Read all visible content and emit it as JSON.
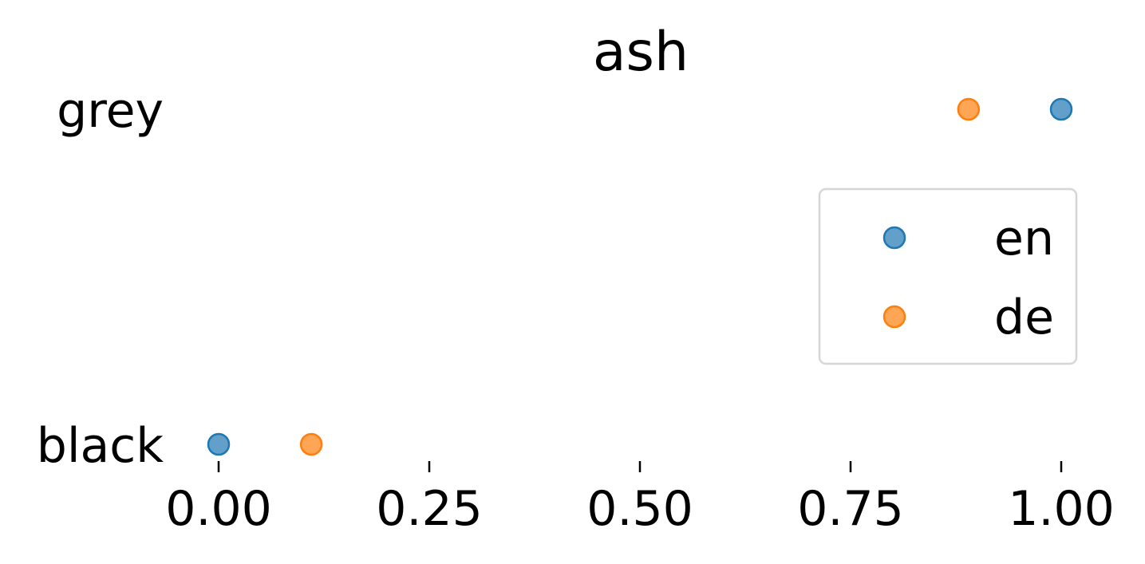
{
  "chart_data": {
    "type": "scatter",
    "title": "ash",
    "xlabel": "",
    "ylabel": "",
    "xlim": [
      -0.05,
      1.05
    ],
    "x_ticks": [
      0.0,
      0.25,
      0.5,
      0.75,
      1.0
    ],
    "x_tick_labels": [
      "0.00",
      "0.25",
      "0.50",
      "0.75",
      "1.00"
    ],
    "categories": [
      "black",
      "grey"
    ],
    "series": [
      {
        "name": "en",
        "color": "#1f77b4",
        "points": [
          {
            "category": "grey",
            "x": 1.0
          },
          {
            "category": "black",
            "x": 0.0
          }
        ]
      },
      {
        "name": "de",
        "color": "#ff7f0e",
        "points": [
          {
            "category": "grey",
            "x": 0.89
          },
          {
            "category": "black",
            "x": 0.11
          }
        ]
      }
    ],
    "legend": {
      "position": "right",
      "entries": [
        "en",
        "de"
      ]
    },
    "grid": false
  }
}
